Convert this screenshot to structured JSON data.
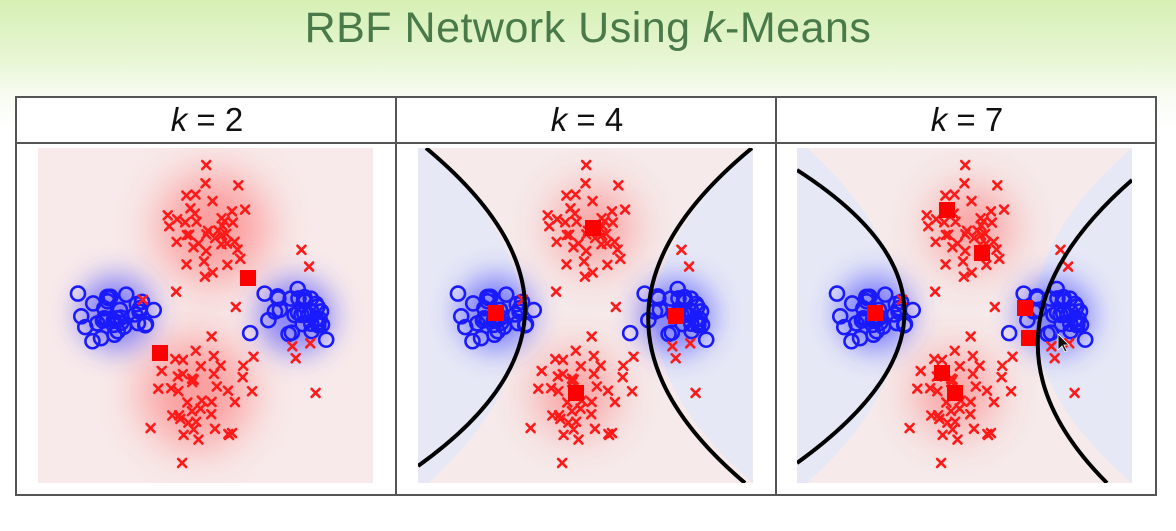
{
  "title": {
    "prefix": "RBF Network Using ",
    "var": "k",
    "suffix": "-Means"
  },
  "panels": [
    {
      "var": "k",
      "eq": " = ",
      "value": "2"
    },
    {
      "var": "k",
      "eq": " = ",
      "value": "4"
    },
    {
      "var": "k",
      "eq": " = ",
      "value": "7"
    }
  ],
  "colors": {
    "class_x": "#ff1a1a",
    "class_o": "#1a1aff",
    "bg_red": "#f8eaea",
    "bg_blue": "#e6e8f6",
    "boundary": "#000000"
  },
  "markers": {
    "cross": "x-marker",
    "circle": "o-marker",
    "center": "square-marker"
  }
}
